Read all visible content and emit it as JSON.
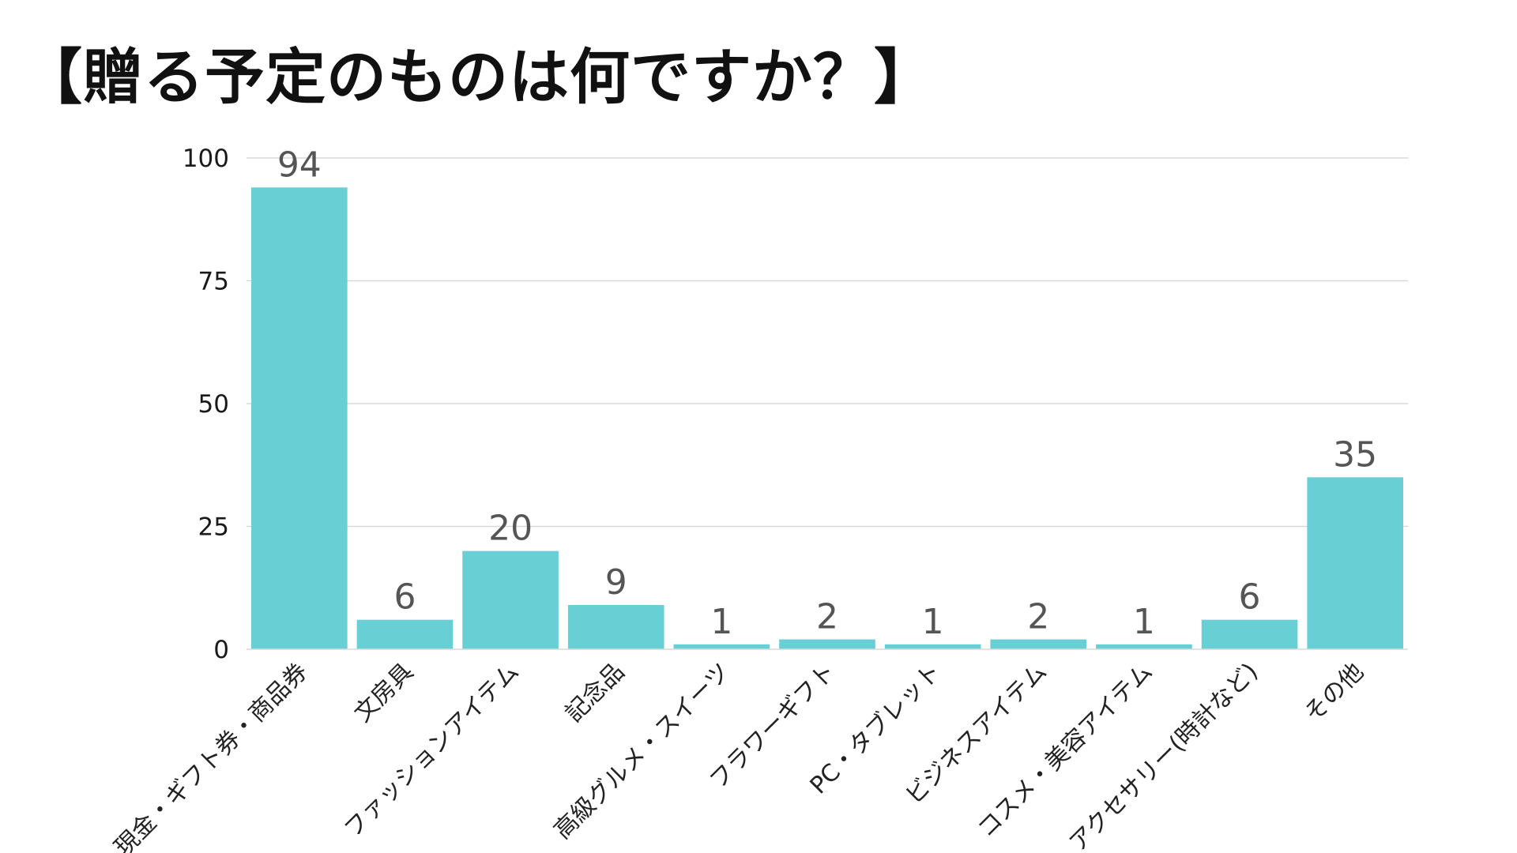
{
  "chart_data": {
    "type": "bar",
    "title": "【贈る予定のものは何ですか？】",
    "xlabel": "",
    "ylabel": "",
    "ylim": [
      0,
      100
    ],
    "yticks": [
      0,
      25,
      50,
      75,
      100
    ],
    "grid": true,
    "bar_color": "#68CFD5",
    "categories": [
      "現金・ギフト券・商品券",
      "文房具",
      "ファッションアイテム",
      "記念品",
      "高級グルメ・スイーツ",
      "フラワーギフト",
      "PC・タブレット",
      "ビジネスアイテム",
      "コスメ・美容アイテム",
      "アクセサリー(時計など)",
      "その他"
    ],
    "values": [
      94,
      6,
      20,
      9,
      1,
      2,
      1,
      2,
      1,
      6,
      35
    ]
  }
}
